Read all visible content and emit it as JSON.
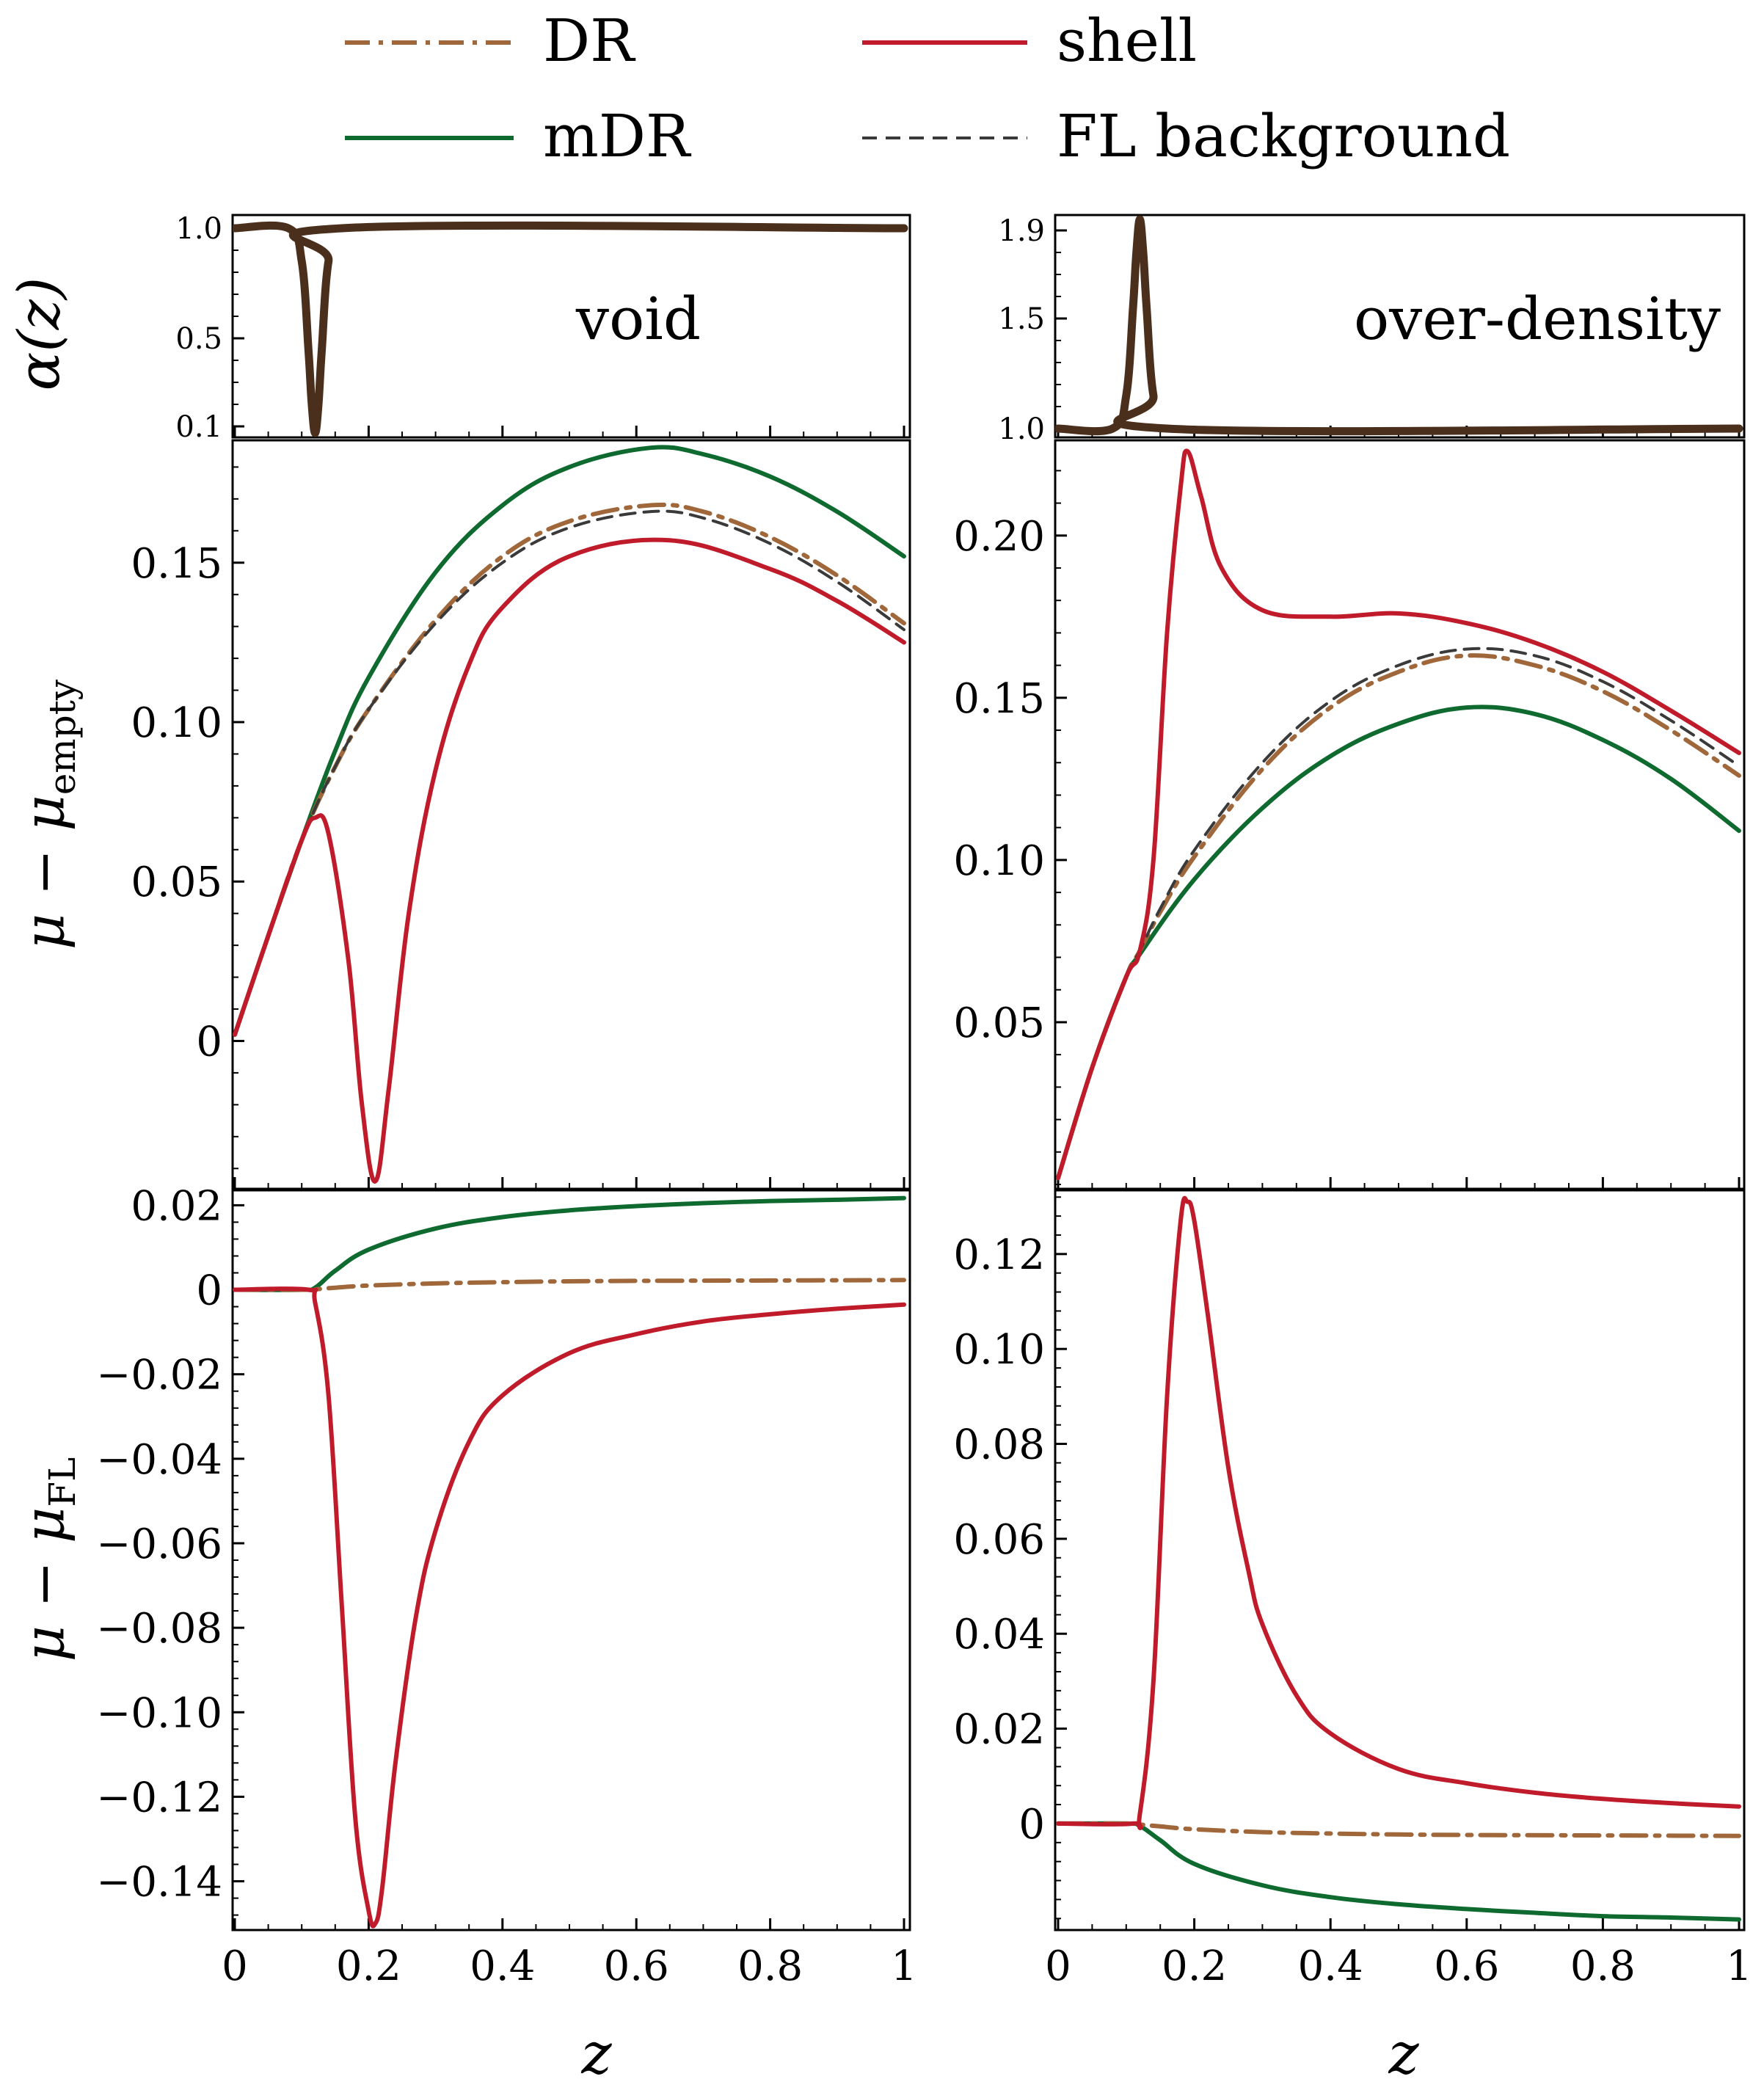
{
  "colors": {
    "DR": "#a0683a",
    "mDR": "#0f6a2f",
    "shell": "#c01b2a",
    "FL": "#3a3a3a",
    "alpha": "#4a2f1c"
  },
  "legend": [
    {
      "key": "DR",
      "label": "DR",
      "style": "dashdot"
    },
    {
      "key": "shell",
      "label": "shell",
      "style": "solid"
    },
    {
      "key": "mDR",
      "label": "mDR",
      "style": "solid"
    },
    {
      "key": "FL",
      "label": "FL background",
      "style": "dashed"
    }
  ],
  "axis_labels": {
    "x": "z",
    "alpha_row": "α(z)",
    "mu_empty_row_main": "μ − μ",
    "mu_empty_row_sub": "empty",
    "mu_fl_row_main": "μ − μ",
    "mu_fl_row_sub": "FL"
  },
  "annotations": {
    "void": "void",
    "overdensity": "over-density"
  },
  "chart_data": [
    {
      "id": "alpha_void",
      "type": "line",
      "title": "void",
      "xlim": [
        0,
        1
      ],
      "ylim": [
        0.07,
        1.04
      ],
      "yticks": [
        0.1,
        0.5,
        1.0
      ],
      "ytick_labels": [
        "0.1",
        "0.5",
        "1.0"
      ],
      "series": [
        {
          "name": "α(z)",
          "color_key": "alpha",
          "x": [
            0,
            0.08,
            0.1,
            0.11,
            0.115,
            0.12,
            0.125,
            0.13,
            0.14,
            0.16,
            1.0
          ],
          "y": [
            1.0,
            1.0,
            0.85,
            0.45,
            0.2,
            0.07,
            0.2,
            0.45,
            0.85,
            1.0,
            1.0
          ]
        }
      ]
    },
    {
      "id": "alpha_over",
      "type": "line",
      "title": "over-density",
      "xlim": [
        0,
        1
      ],
      "ylim": [
        0.98,
        1.95
      ],
      "yticks": [
        1.0,
        1.5,
        1.9
      ],
      "ytick_labels": [
        "1.0",
        "1.5",
        "1.9"
      ],
      "series": [
        {
          "name": "α(z)",
          "color_key": "alpha",
          "x": [
            0,
            0.08,
            0.1,
            0.11,
            0.115,
            0.12,
            0.125,
            0.13,
            0.14,
            0.16,
            1.0
          ],
          "y": [
            1.0,
            1.0,
            1.15,
            1.55,
            1.8,
            1.95,
            1.8,
            1.55,
            1.15,
            1.0,
            1.0
          ]
        }
      ]
    },
    {
      "id": "mu_empty_void",
      "type": "line",
      "xlim": [
        0,
        1
      ],
      "ylim": [
        -0.045,
        0.187
      ],
      "yticks": [
        0,
        0.05,
        0.1,
        0.15
      ],
      "ytick_labels": [
        "0",
        "0.05",
        "0.10",
        "0.15"
      ],
      "series": [
        {
          "name": "mDR",
          "color_key": "mDR",
          "x": [
            0,
            0.05,
            0.1,
            0.15,
            0.2,
            0.3,
            0.4,
            0.5,
            0.62,
            0.7,
            0.8,
            0.9,
            1.0
          ],
          "y": [
            0.002,
            0.033,
            0.063,
            0.091,
            0.114,
            0.147,
            0.168,
            0.18,
            0.186,
            0.184,
            0.177,
            0.166,
            0.152
          ]
        },
        {
          "name": "DR",
          "color_key": "DR",
          "x": [
            0,
            0.05,
            0.1,
            0.15,
            0.2,
            0.3,
            0.4,
            0.5,
            0.62,
            0.7,
            0.8,
            0.9,
            1.0
          ],
          "y": [
            0.002,
            0.033,
            0.063,
            0.086,
            0.104,
            0.132,
            0.152,
            0.163,
            0.168,
            0.166,
            0.158,
            0.146,
            0.131
          ]
        },
        {
          "name": "FL background",
          "color_key": "FL",
          "x": [
            0,
            0.05,
            0.1,
            0.15,
            0.2,
            0.3,
            0.4,
            0.5,
            0.62,
            0.7,
            0.8,
            0.9,
            1.0
          ],
          "y": [
            0.002,
            0.033,
            0.063,
            0.086,
            0.104,
            0.131,
            0.15,
            0.161,
            0.166,
            0.164,
            0.156,
            0.144,
            0.129
          ]
        },
        {
          "name": "shell",
          "color_key": "shell",
          "x": [
            0,
            0.05,
            0.1,
            0.12,
            0.14,
            0.17,
            0.19,
            0.21,
            0.23,
            0.26,
            0.3,
            0.35,
            0.4,
            0.5,
            0.65,
            0.8,
            0.9,
            1.0
          ],
          "y": [
            0.002,
            0.033,
            0.063,
            0.07,
            0.065,
            0.025,
            -0.02,
            -0.044,
            -0.015,
            0.04,
            0.085,
            0.118,
            0.136,
            0.152,
            0.157,
            0.148,
            0.138,
            0.125
          ]
        }
      ]
    },
    {
      "id": "mu_empty_over",
      "type": "line",
      "xlim": [
        0,
        1
      ],
      "ylim": [
        0.0,
        0.228
      ],
      "yticks": [
        0.05,
        0.1,
        0.15,
        0.2
      ],
      "ytick_labels": [
        "0.05",
        "0.10",
        "0.15",
        "0.20"
      ],
      "series": [
        {
          "name": "mDR",
          "color_key": "mDR",
          "x": [
            0,
            0.05,
            0.1,
            0.12,
            0.2,
            0.3,
            0.4,
            0.5,
            0.6,
            0.7,
            0.8,
            0.9,
            1.0
          ],
          "y": [
            0.002,
            0.036,
            0.064,
            0.071,
            0.094,
            0.116,
            0.132,
            0.142,
            0.147,
            0.145,
            0.137,
            0.125,
            0.109
          ]
        },
        {
          "name": "DR",
          "color_key": "DR",
          "x": [
            0,
            0.05,
            0.1,
            0.12,
            0.15,
            0.2,
            0.3,
            0.4,
            0.5,
            0.6,
            0.7,
            0.8,
            0.9,
            1.0
          ],
          "y": [
            0.002,
            0.036,
            0.064,
            0.072,
            0.084,
            0.101,
            0.128,
            0.147,
            0.158,
            0.163,
            0.16,
            0.152,
            0.14,
            0.126
          ]
        },
        {
          "name": "FL background",
          "color_key": "FL",
          "x": [
            0,
            0.05,
            0.1,
            0.12,
            0.15,
            0.2,
            0.3,
            0.4,
            0.5,
            0.6,
            0.7,
            0.8,
            0.9,
            1.0
          ],
          "y": [
            0.002,
            0.036,
            0.064,
            0.072,
            0.085,
            0.103,
            0.13,
            0.149,
            0.16,
            0.165,
            0.163,
            0.155,
            0.143,
            0.129
          ]
        },
        {
          "name": "shell",
          "color_key": "shell",
          "x": [
            0,
            0.05,
            0.1,
            0.12,
            0.14,
            0.16,
            0.18,
            0.19,
            0.21,
            0.24,
            0.3,
            0.4,
            0.5,
            0.6,
            0.7,
            0.8,
            0.9,
            1.0
          ],
          "y": [
            0.002,
            0.036,
            0.064,
            0.072,
            0.1,
            0.17,
            0.215,
            0.226,
            0.212,
            0.19,
            0.177,
            0.175,
            0.176,
            0.173,
            0.167,
            0.158,
            0.146,
            0.133
          ]
        }
      ]
    },
    {
      "id": "mu_fl_void",
      "type": "line",
      "xlim": [
        0,
        1
      ],
      "ylim": [
        -0.1505,
        0.0225
      ],
      "yticks": [
        -0.14,
        -0.12,
        -0.1,
        -0.08,
        -0.06,
        -0.04,
        -0.02,
        0,
        0.02
      ],
      "ytick_labels": [
        "−0.14",
        "−0.12",
        "−0.10",
        "−0.08",
        "−0.06",
        "−0.04",
        "−0.02",
        "0",
        "0.02"
      ],
      "series": [
        {
          "name": "mDR",
          "color_key": "mDR",
          "x": [
            0,
            0.1,
            0.12,
            0.15,
            0.2,
            0.3,
            0.4,
            0.5,
            0.6,
            0.7,
            0.8,
            0.9,
            1.0
          ],
          "y": [
            0,
            0,
            0.0005,
            0.0045,
            0.0095,
            0.0145,
            0.0172,
            0.0188,
            0.0198,
            0.0205,
            0.021,
            0.0213,
            0.0217
          ]
        },
        {
          "name": "DR",
          "color_key": "DR",
          "x": [
            0,
            0.1,
            0.12,
            0.15,
            0.2,
            0.3,
            0.4,
            0.5,
            0.6,
            0.8,
            1.0
          ],
          "y": [
            0,
            0,
            0.0001,
            0.0005,
            0.001,
            0.0015,
            0.0018,
            0.002,
            0.0021,
            0.0022,
            0.0023
          ]
        },
        {
          "name": "shell",
          "color_key": "shell",
          "x": [
            0,
            0.11,
            0.12,
            0.14,
            0.16,
            0.18,
            0.2,
            0.21,
            0.22,
            0.24,
            0.27,
            0.3,
            0.35,
            0.4,
            0.5,
            0.6,
            0.7,
            0.8,
            0.9,
            1.0
          ],
          "y": [
            0,
            0,
            -0.003,
            -0.025,
            -0.075,
            -0.125,
            -0.147,
            -0.15,
            -0.142,
            -0.112,
            -0.078,
            -0.057,
            -0.036,
            -0.025,
            -0.015,
            -0.0105,
            -0.0075,
            -0.0058,
            -0.0045,
            -0.0035
          ]
        }
      ]
    },
    {
      "id": "mu_fl_over",
      "type": "line",
      "xlim": [
        0,
        1
      ],
      "ylim": [
        -0.0215,
        0.1325
      ],
      "yticks": [
        0,
        0.02,
        0.04,
        0.06,
        0.08,
        0.1,
        0.12
      ],
      "ytick_labels": [
        "0",
        "0.02",
        "0.04",
        "0.06",
        "0.08",
        "0.10",
        "0.12"
      ],
      "series": [
        {
          "name": "mDR",
          "color_key": "mDR",
          "x": [
            0,
            0.1,
            0.12,
            0.15,
            0.2,
            0.3,
            0.4,
            0.5,
            0.6,
            0.7,
            0.8,
            0.9,
            1.0
          ],
          "y": [
            0,
            0,
            -0.0005,
            -0.0035,
            -0.0085,
            -0.013,
            -0.0155,
            -0.017,
            -0.018,
            -0.0188,
            -0.0195,
            -0.0198,
            -0.0202
          ]
        },
        {
          "name": "DR",
          "color_key": "DR",
          "x": [
            0,
            0.1,
            0.12,
            0.15,
            0.2,
            0.3,
            0.4,
            0.5,
            0.6,
            0.8,
            1.0
          ],
          "y": [
            0,
            0,
            -0.0002,
            -0.0006,
            -0.0012,
            -0.0018,
            -0.0021,
            -0.0023,
            -0.0024,
            -0.0025,
            -0.0026
          ]
        },
        {
          "name": "shell",
          "color_key": "shell",
          "x": [
            0,
            0.11,
            0.12,
            0.14,
            0.16,
            0.18,
            0.19,
            0.2,
            0.22,
            0.25,
            0.28,
            0.3,
            0.35,
            0.4,
            0.5,
            0.6,
            0.7,
            0.8,
            0.9,
            1.0
          ],
          "y": [
            0,
            0,
            0.002,
            0.03,
            0.09,
            0.127,
            0.131,
            0.127,
            0.107,
            0.075,
            0.053,
            0.042,
            0.027,
            0.019,
            0.0115,
            0.0085,
            0.0065,
            0.0052,
            0.0043,
            0.0036
          ]
        }
      ]
    }
  ],
  "xaxis": {
    "ticks": [
      0,
      0.2,
      0.4,
      0.6,
      0.8,
      1
    ],
    "tick_labels": [
      "0",
      "0.2",
      "0.4",
      "0.6",
      "0.8",
      "1"
    ]
  }
}
